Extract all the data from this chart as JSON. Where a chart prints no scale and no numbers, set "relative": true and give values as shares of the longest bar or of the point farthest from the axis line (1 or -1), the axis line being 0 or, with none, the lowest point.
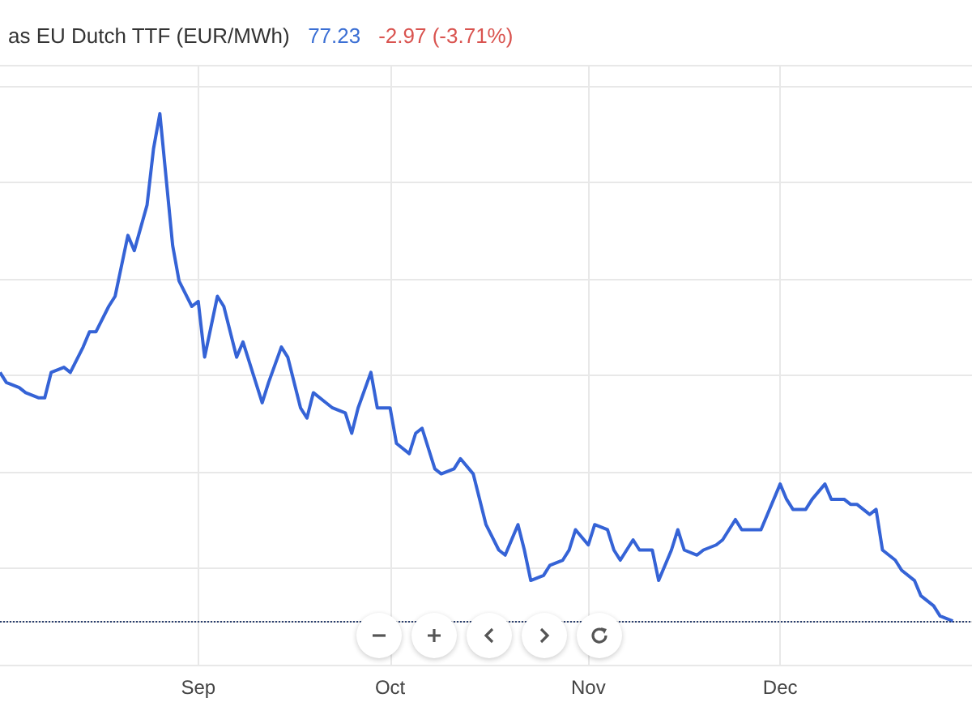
{
  "chart_data": {
    "type": "line",
    "title": "as EU Dutch TTF (EUR/MWh)",
    "annotations": [
      "77.23",
      "-2.97 (-3.71%)"
    ],
    "relative": true,
    "grid": true,
    "marker": "none",
    "line_style": "solid",
    "xlim": [
      "--08-01",
      "--12-31"
    ],
    "xticks": [
      {
        "value": "--09-01",
        "label": "Sep"
      },
      {
        "value": "--10-01",
        "label": "Oct"
      },
      {
        "value": "--11-01",
        "label": "Nov"
      },
      {
        "value": "--12-01",
        "label": "Dec"
      }
    ],
    "ref_lines": [
      {
        "axis": "y",
        "value": 0,
        "label": null,
        "color": "#2a3f6e",
        "line_style": "dotted"
      }
    ],
    "series": [
      {
        "color": "#3563d6",
        "x": [
          "--08-01",
          "--08-02",
          "--08-04",
          "--08-05",
          "--08-07",
          "--08-08",
          "--08-09",
          "--08-11",
          "--08-12",
          "--08-14",
          "--08-15",
          "--08-16",
          "--08-18",
          "--08-19",
          "--08-21",
          "--08-22",
          "--08-24",
          "--08-25",
          "--08-26",
          "--08-28",
          "--08-29",
          "--08-31",
          "--09-01",
          "--09-02",
          "--09-04",
          "--09-05",
          "--09-07",
          "--09-08",
          "--09-11",
          "--09-12",
          "--09-14",
          "--09-15",
          "--09-17",
          "--09-18",
          "--09-19",
          "--09-21",
          "--09-22",
          "--09-24",
          "--09-25",
          "--09-26",
          "--09-28",
          "--09-29",
          "--10-01",
          "--10-02",
          "--10-04",
          "--10-05",
          "--10-06",
          "--10-08",
          "--10-09",
          "--10-11",
          "--10-12",
          "--10-14",
          "--10-16",
          "--10-18",
          "--10-19",
          "--10-21",
          "--10-22",
          "--10-23",
          "--10-25",
          "--10-26",
          "--10-28",
          "--10-29",
          "--10-30",
          "--11-01",
          "--11-02",
          "--11-04",
          "--11-05",
          "--11-06",
          "--11-08",
          "--11-09",
          "--11-11",
          "--11-12",
          "--11-14",
          "--11-15",
          "--11-16",
          "--11-18",
          "--11-19",
          "--11-21",
          "--11-22",
          "--11-24",
          "--11-25",
          "--11-26",
          "--11-28",
          "--11-29",
          "--12-01",
          "--12-02",
          "--12-03",
          "--12-05",
          "--12-06",
          "--12-08",
          "--12-09",
          "--12-11",
          "--12-12",
          "--12-13",
          "--12-15",
          "--12-16",
          "--12-17",
          "--12-19",
          "--12-20",
          "--12-22",
          "--12-23",
          "--12-25",
          "--12-26",
          "--12-28"
        ],
        "values": [
          0.49,
          0.47,
          0.46,
          0.45,
          0.44,
          0.44,
          0.49,
          0.5,
          0.49,
          0.54,
          0.57,
          0.57,
          0.62,
          0.64,
          0.76,
          0.73,
          0.82,
          0.93,
          1,
          0.74,
          0.67,
          0.62,
          0.63,
          0.52,
          0.64,
          0.62,
          0.52,
          0.55,
          0.43,
          0.47,
          0.54,
          0.52,
          0.42,
          0.4,
          0.45,
          0.43,
          0.42,
          0.41,
          0.37,
          0.42,
          0.49,
          0.42,
          0.42,
          0.35,
          0.33,
          0.37,
          0.38,
          0.3,
          0.29,
          0.3,
          0.32,
          0.29,
          0.19,
          0.14,
          0.13,
          0.19,
          0.14,
          0.08,
          0.09,
          0.11,
          0.12,
          0.14,
          0.18,
          0.15,
          0.19,
          0.18,
          0.14,
          0.12,
          0.16,
          0.14,
          0.14,
          0.08,
          0.14,
          0.18,
          0.14,
          0.13,
          0.14,
          0.15,
          0.16,
          0.2,
          0.18,
          0.18,
          0.18,
          0.21,
          0.27,
          0.24,
          0.22,
          0.22,
          0.24,
          0.27,
          0.24,
          0.24,
          0.23,
          0.23,
          0.21,
          0.22,
          0.14,
          0.12,
          0.1,
          0.08,
          0.05,
          0.03,
          0.01,
          0
        ]
      }
    ]
  }
}
